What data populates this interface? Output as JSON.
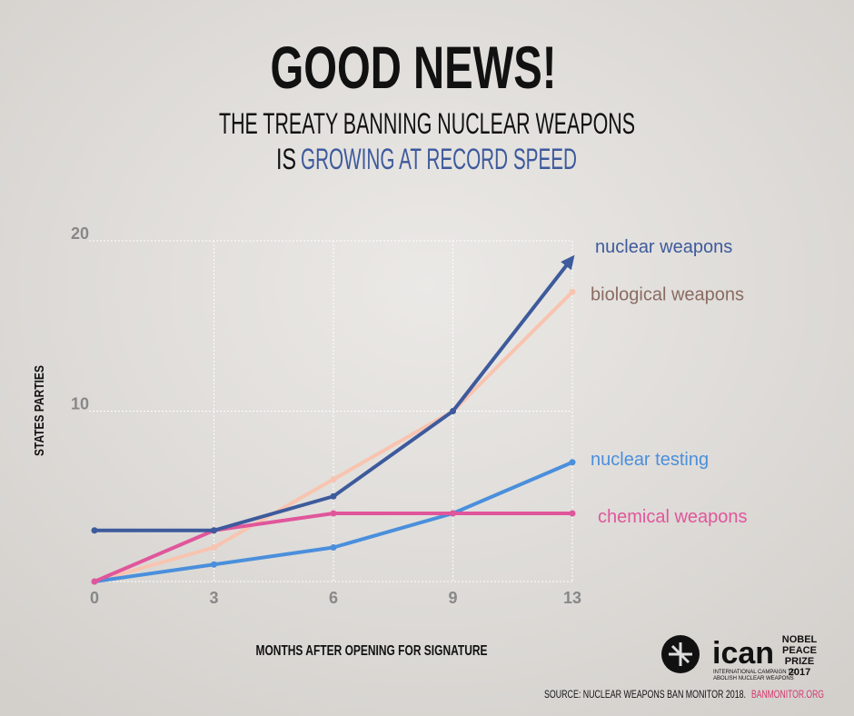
{
  "chart_data": {
    "type": "line",
    "title": "GOOD NEWS!",
    "subtitle": [
      "THE TREATY BANNING NUCLEAR WEAPONS",
      "IS",
      "GROWING AT RECORD SPEED"
    ],
    "x_label": "MONTHS AFTER OPENING FOR SIGNATURE",
    "y_label": "STATES PARTIES",
    "categories": [
      "0",
      "3",
      "6",
      "9",
      "13"
    ],
    "ylim": [
      0,
      20
    ],
    "yticks": [
      10,
      20
    ],
    "grid": true,
    "series": [
      {
        "name": "biological weapons",
        "color": "#f8c4b0",
        "values": [
          0,
          2,
          6,
          10,
          17
        ]
      },
      {
        "name": "nuclear testing",
        "color": "#4a8fdc",
        "values": [
          0,
          1,
          2,
          4,
          7
        ]
      },
      {
        "name": "chemical weapons",
        "color": "#e0569b",
        "values": [
          0,
          3,
          4,
          4,
          4
        ]
      },
      {
        "name": "nuclear weapons",
        "color": "#3d5a9c",
        "values": [
          3,
          3,
          5,
          10,
          19
        ]
      }
    ],
    "source": "SOURCE:  NUCLEAR WEAPONS BAN MONITOR 2018.",
    "source_link": "BANMONITOR.ORG"
  },
  "branding": {
    "name": "ican",
    "tagline": [
      "INTERNATIONAL CAMPAIGN TO",
      "ABOLISH NUCLEAR WEAPONS"
    ],
    "prize": [
      "NOBEL",
      "PEACE",
      "PRIZE",
      "2017"
    ]
  }
}
